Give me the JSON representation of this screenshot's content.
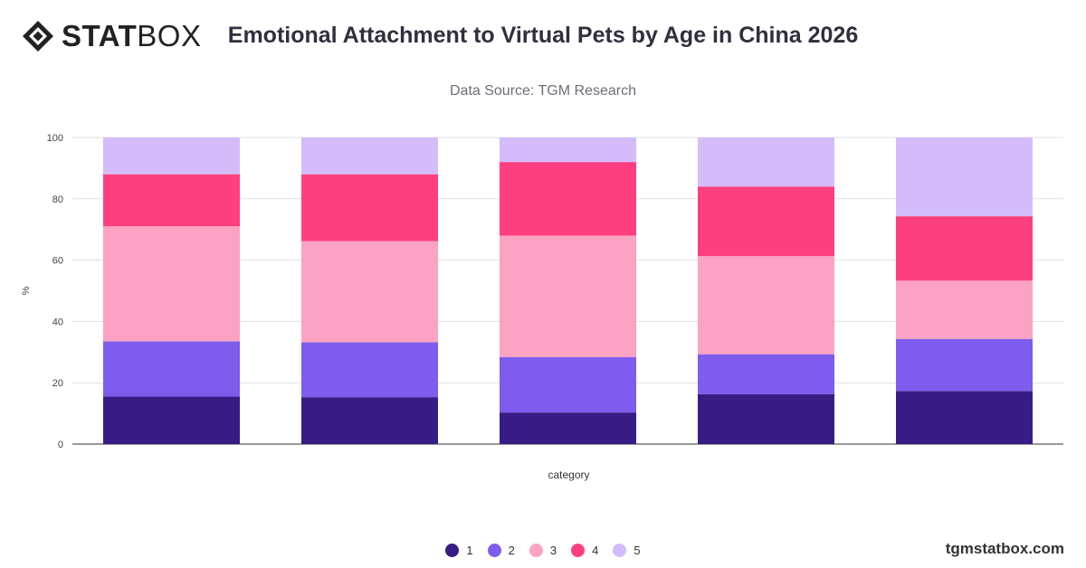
{
  "brand": {
    "logo_part1": "STAT",
    "logo_part2": "BOX",
    "site": "tgmstatbox.com"
  },
  "chart_data": {
    "type": "bar",
    "stacked": true,
    "title": "Emotional Attachment to Virtual Pets by Age in China 2026",
    "subtitle": "Data Source: TGM Research",
    "xlabel": "category",
    "ylabel": "%",
    "ylim": [
      0,
      100
    ],
    "yticks": [
      0,
      20,
      40,
      60,
      80,
      100
    ],
    "grid": true,
    "legend_position": "bottom",
    "categories": [
      "",
      "",
      "",
      "",
      ""
    ],
    "series": [
      {
        "name": "1",
        "color": "#381c85",
        "values": [
          15.5,
          15.3,
          10.3,
          16.3,
          17.3
        ]
      },
      {
        "name": "2",
        "color": "#7e5cee",
        "values": [
          18.0,
          17.9,
          18.1,
          13.0,
          17.0
        ]
      },
      {
        "name": "3",
        "color": "#fca3c3",
        "values": [
          37.5,
          33.0,
          39.6,
          32.0,
          19.0
        ]
      },
      {
        "name": "4",
        "color": "#fd3f80",
        "values": [
          17.0,
          21.8,
          24.0,
          22.7,
          21.0
        ]
      },
      {
        "name": "5",
        "color": "#d4bcfa",
        "values": [
          12.0,
          12.0,
          8.0,
          16.0,
          25.7
        ]
      }
    ]
  }
}
